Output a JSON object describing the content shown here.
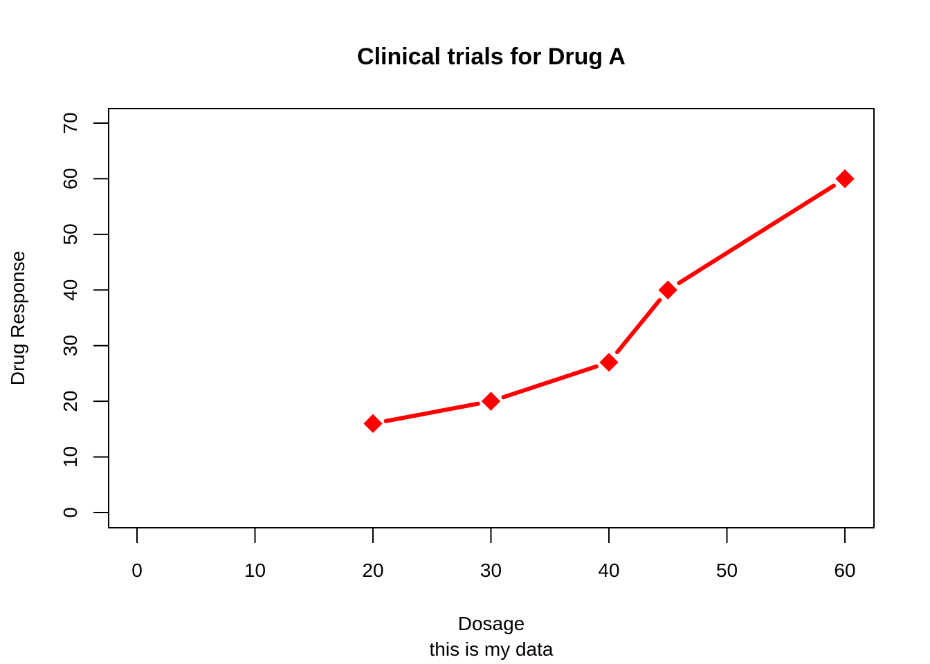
{
  "chart_data": {
    "type": "line",
    "title": "Clinical trials for Drug A",
    "xlabel": "Dosage",
    "sub": "this is my data",
    "ylabel": "Drug Response",
    "xlim": [
      0,
      60
    ],
    "ylim": [
      0,
      70
    ],
    "xticks": [
      0,
      10,
      20,
      30,
      40,
      50,
      60
    ],
    "yticks": [
      0,
      10,
      20,
      30,
      40,
      50,
      60,
      70
    ],
    "grid": false,
    "series": [
      {
        "x": [
          20,
          30,
          40,
          45,
          60
        ],
        "y": [
          16,
          20,
          27,
          40,
          60
        ],
        "color": "#ff0000",
        "marker": "diamond"
      }
    ]
  }
}
